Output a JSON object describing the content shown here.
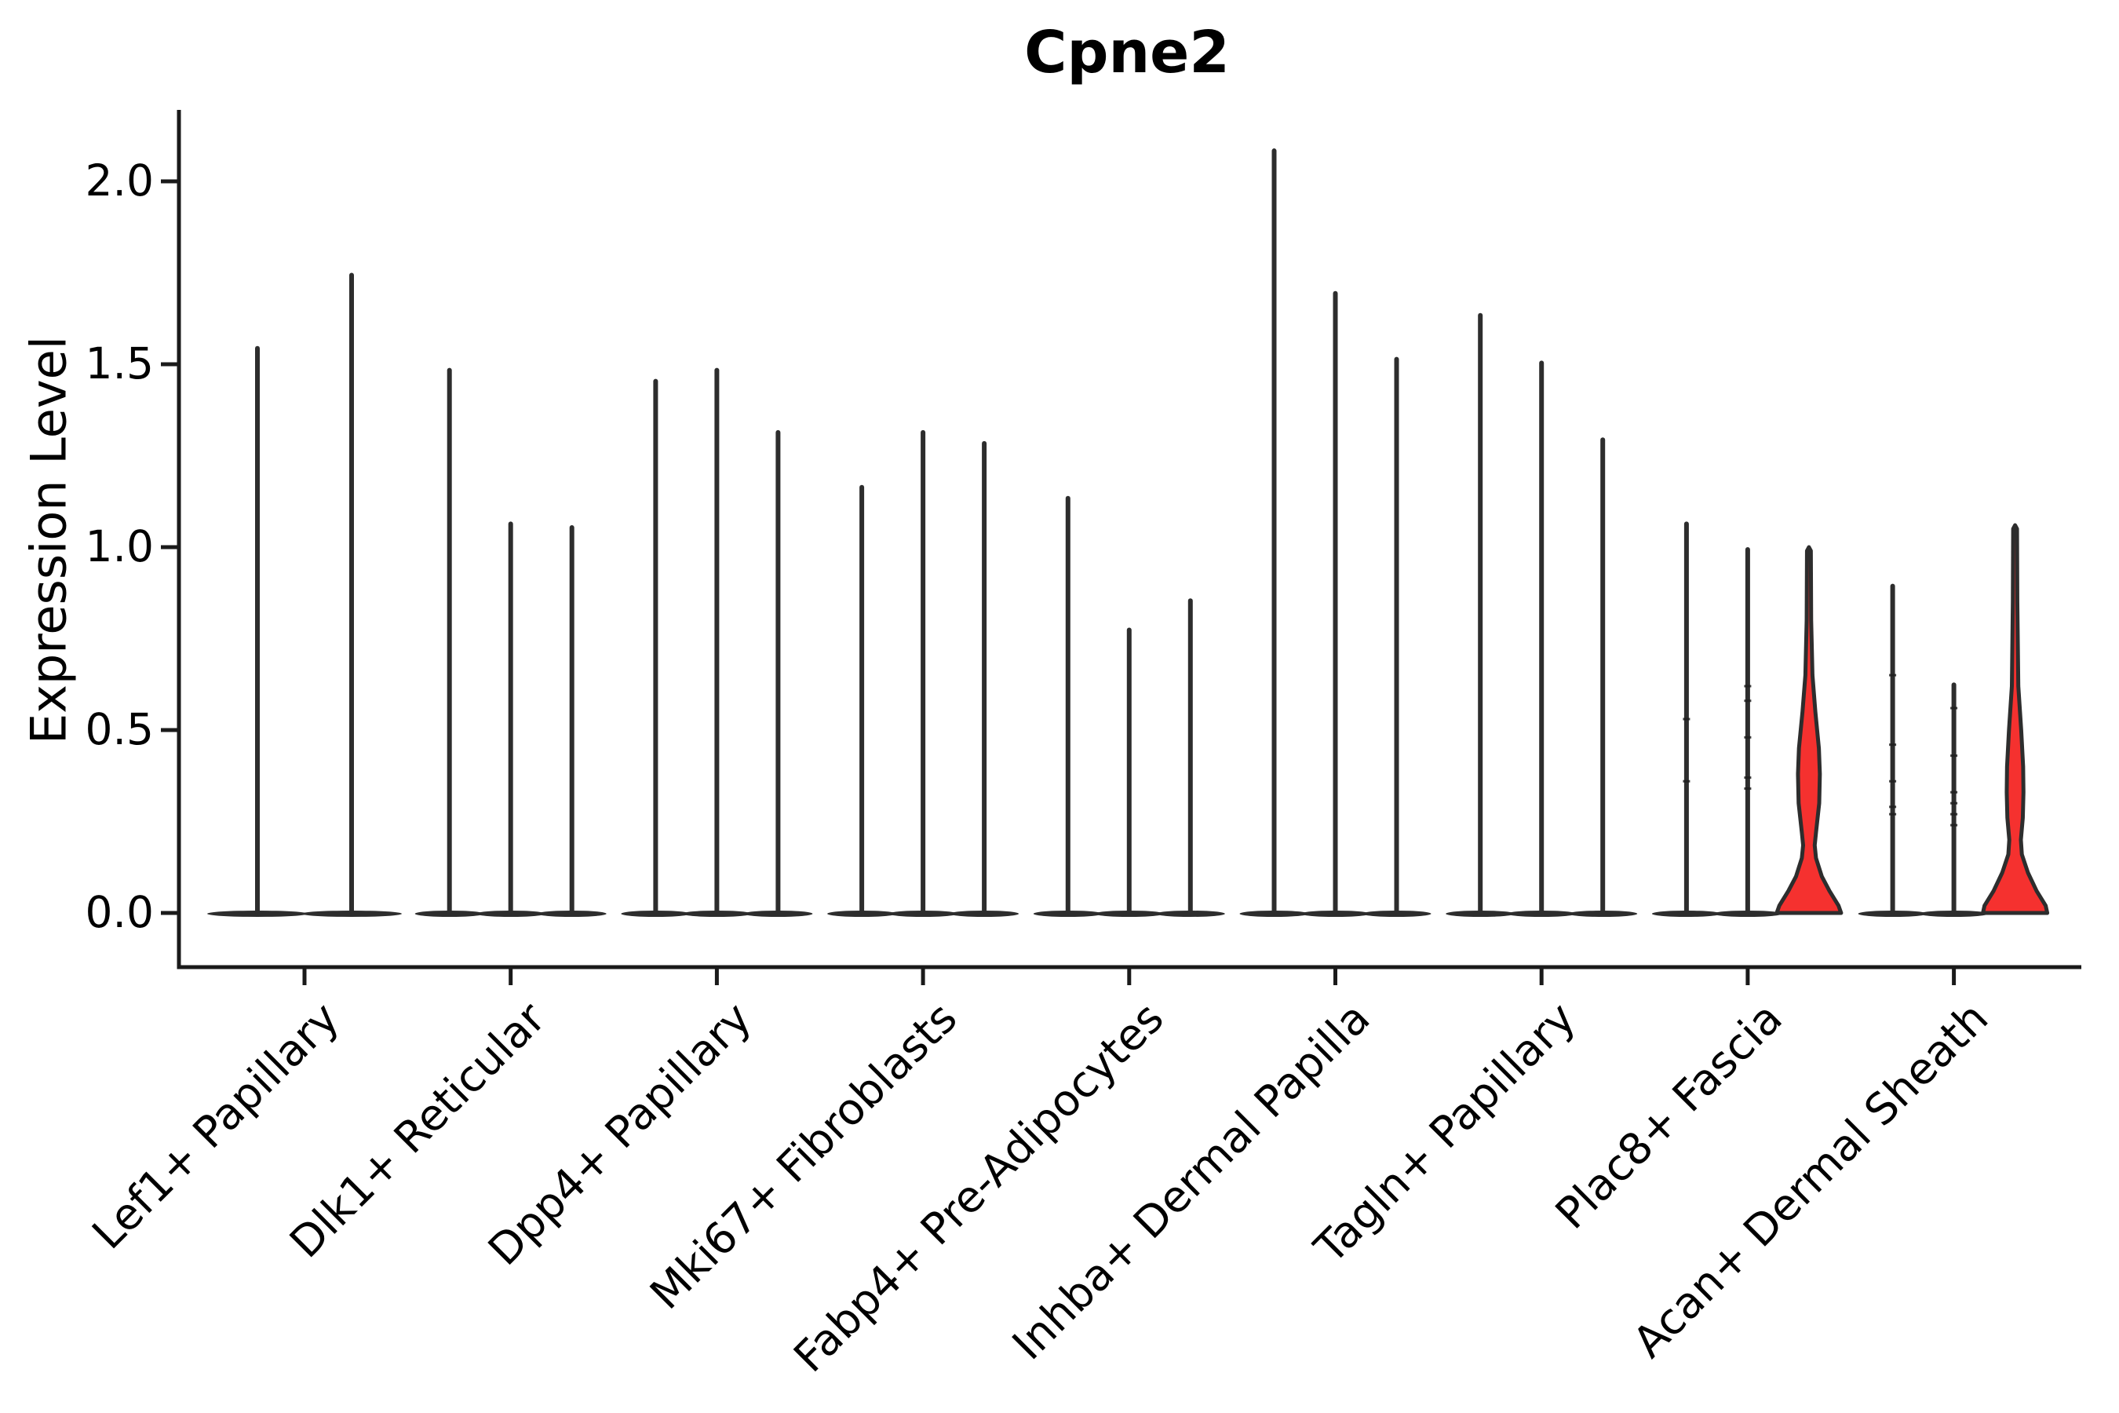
{
  "title": "Cpne2",
  "ylabel": "Expression Level",
  "colors": {
    "background": "#ffffff",
    "axis": "#1a1a1a",
    "violin_edge": "#2d2d2d",
    "highlight_fill": "#f5312f",
    "text": "#000000",
    "point_mark": "#1f1f1f"
  },
  "chart_data": {
    "type": "violin",
    "title": "Cpne2",
    "xlabel": "",
    "ylabel": "Expression Level",
    "grid": false,
    "legend": "none",
    "ylim": [
      -0.15,
      2.19
    ],
    "yticks": [
      {
        "value": 0.0,
        "label": "0.0"
      },
      {
        "value": 0.5,
        "label": "0.5"
      },
      {
        "value": 1.0,
        "label": "1.0"
      },
      {
        "value": 1.5,
        "label": "1.5"
      },
      {
        "value": 2.0,
        "label": "2.0"
      }
    ],
    "categories": [
      "Lef1+ Papillary",
      "Dlk1+ Reticular",
      "Dpp4+ Papillary",
      "Mki67+ Fibroblasts",
      "Fabp4+ Pre-Adipocytes",
      "Inhba+ Dermal Papilla",
      "Tagln+ Papillary",
      "Plac8+ Fascia",
      "Acan+ Dermal Sheath"
    ],
    "groups": [
      {
        "category": "Lef1+ Papillary",
        "violins": [
          {
            "max": 1.55,
            "highlight": false,
            "points": []
          },
          {
            "max": 1.75,
            "highlight": false,
            "points": []
          }
        ]
      },
      {
        "category": "Dlk1+ Reticular",
        "violins": [
          {
            "max": 1.49,
            "highlight": false,
            "points": []
          },
          {
            "max": 1.07,
            "highlight": false,
            "points": []
          },
          {
            "max": 1.06,
            "highlight": false,
            "points": []
          }
        ]
      },
      {
        "category": "Dpp4+ Papillary",
        "violins": [
          {
            "max": 1.46,
            "highlight": false,
            "points": []
          },
          {
            "max": 1.49,
            "highlight": false,
            "points": []
          },
          {
            "max": 1.32,
            "highlight": false,
            "points": []
          }
        ]
      },
      {
        "category": "Mki67+ Fibroblasts",
        "violins": [
          {
            "max": 1.17,
            "highlight": false,
            "points": []
          },
          {
            "max": 1.32,
            "highlight": false,
            "points": []
          },
          {
            "max": 1.29,
            "highlight": false,
            "points": []
          }
        ]
      },
      {
        "category": "Fabp4+ Pre-Adipocytes",
        "violins": [
          {
            "max": 1.14,
            "highlight": false,
            "points": []
          },
          {
            "max": 0.78,
            "highlight": false,
            "points": []
          },
          {
            "max": 0.86,
            "highlight": false,
            "points": []
          }
        ]
      },
      {
        "category": "Inhba+ Dermal Papilla",
        "violins": [
          {
            "max": 2.09,
            "highlight": false,
            "points": []
          },
          {
            "max": 1.7,
            "highlight": false,
            "points": []
          },
          {
            "max": 1.52,
            "highlight": false,
            "points": []
          }
        ]
      },
      {
        "category": "Tagln+ Papillary",
        "violins": [
          {
            "max": 1.64,
            "highlight": false,
            "points": []
          },
          {
            "max": 1.51,
            "highlight": false,
            "points": []
          },
          {
            "max": 1.3,
            "highlight": false,
            "points": []
          }
        ]
      },
      {
        "category": "Plac8+ Fascia",
        "violins": [
          {
            "max": 1.07,
            "highlight": false,
            "points": [
              0.53,
              0.36
            ]
          },
          {
            "max": 1.0,
            "highlight": false,
            "points": [
              0.62,
              0.58,
              0.48,
              0.37,
              0.34
            ]
          },
          {
            "max": 1.0,
            "highlight": true,
            "profile": [
              [
                0,
                1.0
              ],
              [
                0.02,
                0.92
              ],
              [
                0.06,
                0.64
              ],
              [
                0.1,
                0.4
              ],
              [
                0.15,
                0.22
              ],
              [
                0.185,
                0.18
              ],
              [
                0.22,
                0.22
              ],
              [
                0.3,
                0.32
              ],
              [
                0.38,
                0.34
              ],
              [
                0.45,
                0.31
              ],
              [
                0.55,
                0.2
              ],
              [
                0.65,
                0.11
              ],
              [
                0.8,
                0.07
              ],
              [
                0.99,
                0.06
              ],
              [
                1.0,
                0.0
              ]
            ],
            "points": []
          }
        ]
      },
      {
        "category": "Acan+ Dermal Sheath",
        "violins": [
          {
            "max": 0.9,
            "highlight": false,
            "points": [
              0.65,
              0.46,
              0.36,
              0.29,
              0.27
            ]
          },
          {
            "max": 0.63,
            "highlight": false,
            "points": [
              0.56,
              0.43,
              0.33,
              0.3,
              0.27,
              0.24
            ]
          },
          {
            "max": 1.06,
            "highlight": true,
            "profile": [
              [
                0,
                1.0
              ],
              [
                0.02,
                0.95
              ],
              [
                0.06,
                0.67
              ],
              [
                0.11,
                0.4
              ],
              [
                0.16,
                0.21
              ],
              [
                0.2,
                0.18
              ],
              [
                0.26,
                0.24
              ],
              [
                0.33,
                0.26
              ],
              [
                0.4,
                0.25
              ],
              [
                0.5,
                0.19
              ],
              [
                0.62,
                0.1
              ],
              [
                0.85,
                0.07
              ],
              [
                1.05,
                0.06
              ],
              [
                1.06,
                0.0
              ]
            ],
            "points": []
          }
        ]
      }
    ]
  }
}
